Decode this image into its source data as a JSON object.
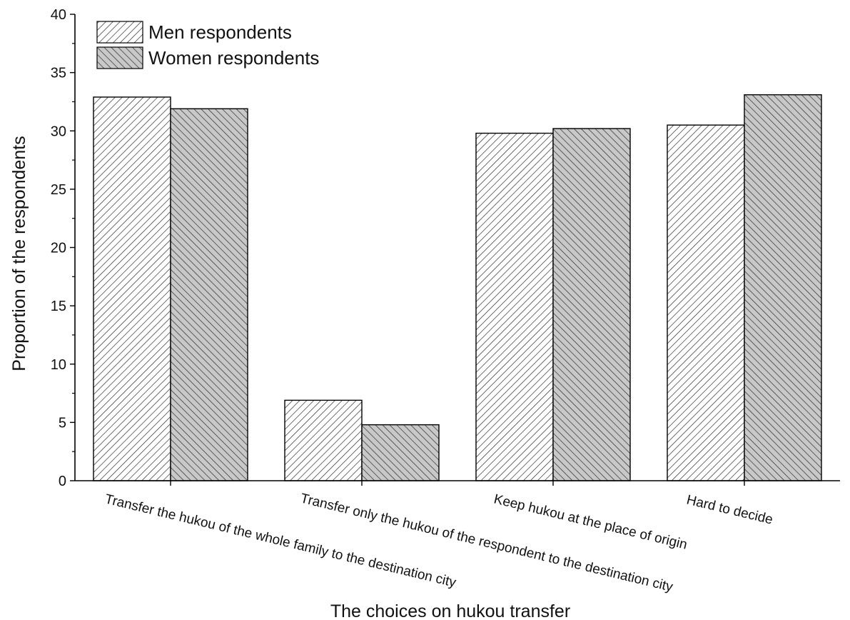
{
  "chart_data": {
    "type": "bar",
    "categories": [
      "Transfer the hukou of the whole family to the destination city",
      "Transfer only the hukou of the respondent to the destination city",
      "Keep hukou at the place of origin",
      "Hard to decide"
    ],
    "series": [
      {
        "name": "Men respondents",
        "values": [
          32.9,
          6.9,
          29.8,
          30.5
        ],
        "fill": "#ffffff",
        "hatch": "forward-diagonal"
      },
      {
        "name": "Women respondents",
        "values": [
          31.9,
          4.8,
          30.2,
          33.1
        ],
        "fill": "#c8c8c8",
        "hatch": "backward-diagonal"
      }
    ],
    "xlabel": "The choices on hukou transfer",
    "ylabel": "Proportion of the respondents",
    "ylim": [
      0,
      40
    ],
    "yticks": [
      0,
      5,
      10,
      15,
      20,
      25,
      30,
      35,
      40
    ],
    "grid": false,
    "legend_position": "top-left"
  }
}
